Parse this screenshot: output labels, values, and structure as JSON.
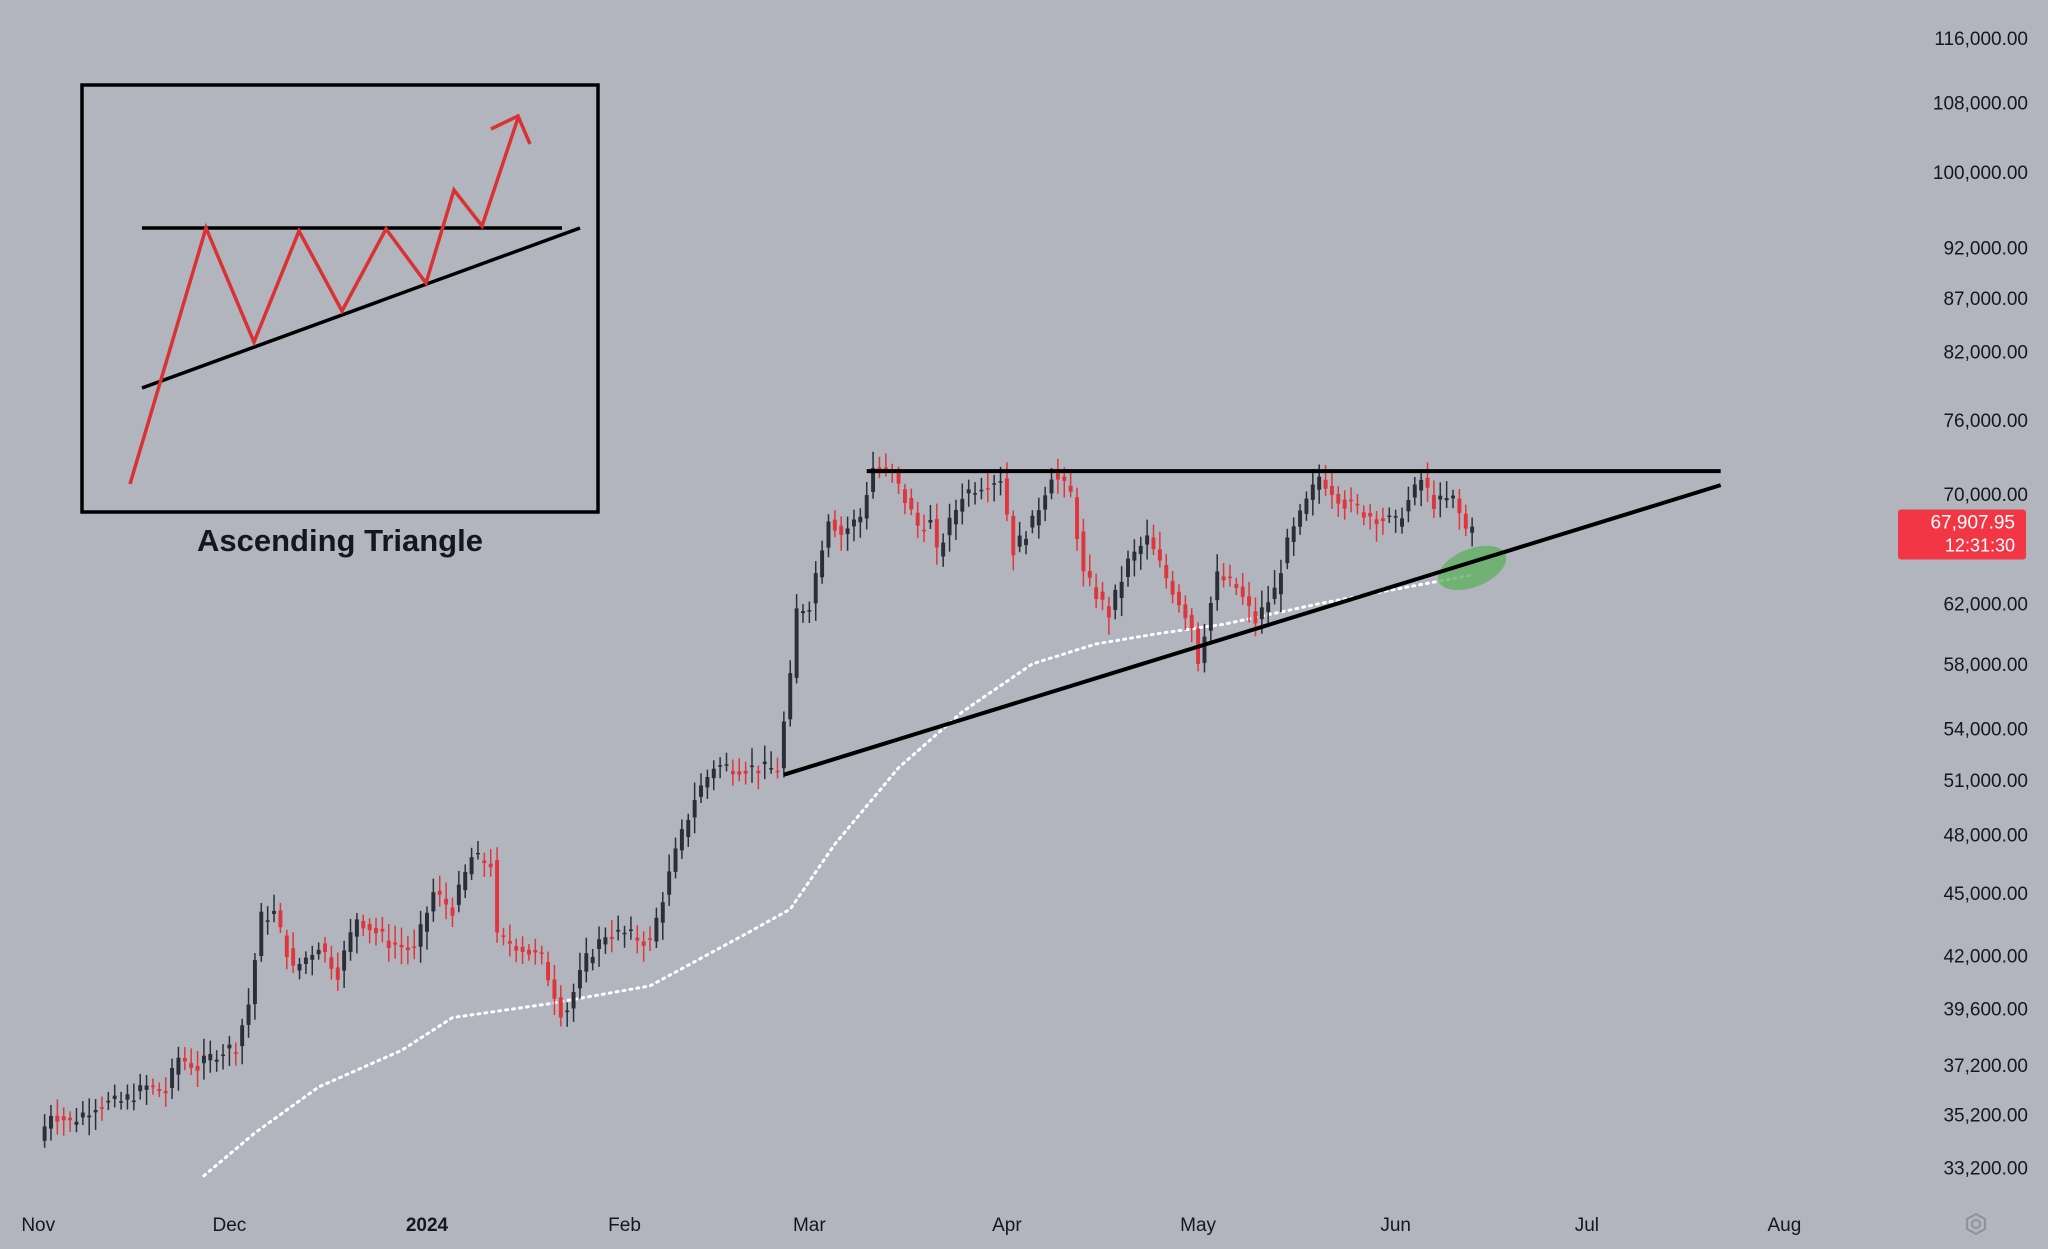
{
  "chart_data": {
    "type": "candlestick",
    "title": "",
    "xlabel": "",
    "ylabel": "",
    "y_scale": "log",
    "ylim": [
      31500,
      121000
    ],
    "xlim": [
      "2023-10-26",
      "2024-08-16"
    ],
    "x_ticks": [
      {
        "date": "2023-11-01",
        "label": "Nov",
        "bold": false
      },
      {
        "date": "2023-12-01",
        "label": "Dec",
        "bold": false
      },
      {
        "date": "2024-01-01",
        "label": "2024",
        "bold": true
      },
      {
        "date": "2024-02-01",
        "label": "Feb",
        "bold": false
      },
      {
        "date": "2024-03-01",
        "label": "Mar",
        "bold": false
      },
      {
        "date": "2024-04-01",
        "label": "Apr",
        "bold": false
      },
      {
        "date": "2024-05-01",
        "label": "May",
        "bold": false
      },
      {
        "date": "2024-06-01",
        "label": "Jun",
        "bold": false
      },
      {
        "date": "2024-07-01",
        "label": "Jul",
        "bold": false
      },
      {
        "date": "2024-08-01",
        "label": "Aug",
        "bold": false
      }
    ],
    "y_ticks": [
      {
        "value": 116000,
        "label": "116,000.00"
      },
      {
        "value": 108000,
        "label": "108,000.00"
      },
      {
        "value": 100000,
        "label": "100,000.00"
      },
      {
        "value": 92000,
        "label": "92,000.00"
      },
      {
        "value": 87000,
        "label": "87,000.00"
      },
      {
        "value": 82000,
        "label": "82,000.00"
      },
      {
        "value": 76000,
        "label": "76,000.00"
      },
      {
        "value": 70000,
        "label": "70,000.00"
      },
      {
        "value": 62000,
        "label": "62,000.00"
      },
      {
        "value": 58000,
        "label": "58,000.00"
      },
      {
        "value": 54000,
        "label": "54,000.00"
      },
      {
        "value": 51000,
        "label": "51,000.00"
      },
      {
        "value": 48000,
        "label": "48,000.00"
      },
      {
        "value": 45000,
        "label": "45,000.00"
      },
      {
        "value": 42000,
        "label": "42,000.00"
      },
      {
        "value": 39600,
        "label": "39,600.00"
      },
      {
        "value": 37200,
        "label": "37,200.00"
      },
      {
        "value": 35200,
        "label": "35,200.00"
      },
      {
        "value": 33200,
        "label": "33,200.00"
      }
    ],
    "colors": {
      "background": "#b2b5be",
      "up_candle": "#2a2e39",
      "down_candle": "#e0353b",
      "text": "#131722",
      "trendline": "#000000",
      "moving_average": "#ffffff",
      "highlight": "#5fb05f",
      "price_tag": "#f23645",
      "inset_zigzag": "#d93232"
    },
    "anchors": [
      [
        "2023-11-01",
        34200
      ],
      [
        "2023-11-03",
        35300
      ],
      [
        "2023-11-06",
        34900
      ],
      [
        "2023-11-10",
        35600
      ],
      [
        "2023-11-14",
        35700
      ],
      [
        "2023-11-18",
        36300
      ],
      [
        "2023-11-21",
        36100
      ],
      [
        "2023-11-23",
        37500
      ],
      [
        "2023-11-26",
        37100
      ],
      [
        "2023-11-29",
        37700
      ],
      [
        "2023-12-02",
        38000
      ],
      [
        "2023-12-04",
        39800
      ],
      [
        "2023-12-06",
        43800
      ],
      [
        "2023-12-08",
        44000
      ],
      [
        "2023-12-11",
        41300
      ],
      [
        "2023-12-15",
        42500
      ],
      [
        "2023-12-18",
        41200
      ],
      [
        "2023-12-21",
        43800
      ],
      [
        "2023-12-26",
        42600
      ],
      [
        "2023-12-30",
        42200
      ],
      [
        "2024-01-02",
        45000
      ],
      [
        "2024-01-05",
        44200
      ],
      [
        "2024-01-08",
        46800
      ],
      [
        "2024-01-11",
        46500
      ],
      [
        "2024-01-12",
        42800
      ],
      [
        "2024-01-15",
        42500
      ],
      [
        "2024-01-19",
        41800
      ],
      [
        "2024-01-22",
        39500
      ],
      [
        "2024-01-23",
        39600
      ],
      [
        "2024-01-26",
        41800
      ],
      [
        "2024-01-29",
        43000
      ],
      [
        "2024-02-01",
        43000
      ],
      [
        "2024-02-05",
        42600
      ],
      [
        "2024-02-09",
        47000
      ],
      [
        "2024-02-12",
        50000
      ],
      [
        "2024-02-15",
        51800
      ],
      [
        "2024-02-20",
        51700
      ],
      [
        "2024-02-25",
        51600
      ],
      [
        "2024-02-27",
        57000
      ],
      [
        "2024-02-28",
        61500
      ],
      [
        "2024-03-01",
        62000
      ],
      [
        "2024-03-04",
        68300
      ],
      [
        "2024-03-06",
        67000
      ],
      [
        "2024-03-09",
        68300
      ],
      [
        "2024-03-11",
        72100
      ],
      [
        "2024-03-14",
        71500
      ],
      [
        "2024-03-18",
        67600
      ],
      [
        "2024-03-20",
        67800
      ],
      [
        "2024-03-21",
        65500
      ],
      [
        "2024-03-25",
        70000
      ],
      [
        "2024-03-28",
        70800
      ],
      [
        "2024-03-31",
        71300
      ],
      [
        "2024-04-02",
        65800
      ],
      [
        "2024-04-05",
        67800
      ],
      [
        "2024-04-08",
        71600
      ],
      [
        "2024-04-11",
        70000
      ],
      [
        "2024-04-13",
        64000
      ],
      [
        "2024-04-17",
        61300
      ],
      [
        "2024-04-20",
        64900
      ],
      [
        "2024-04-23",
        66600
      ],
      [
        "2024-04-26",
        63800
      ],
      [
        "2024-04-30",
        60500
      ],
      [
        "2024-05-01",
        58300
      ],
      [
        "2024-05-04",
        63900
      ],
      [
        "2024-05-07",
        63100
      ],
      [
        "2024-05-10",
        60800
      ],
      [
        "2024-05-13",
        62900
      ],
      [
        "2024-05-15",
        66200
      ],
      [
        "2024-05-20",
        71400
      ],
      [
        "2024-05-24",
        69300
      ],
      [
        "2024-05-28",
        68400
      ],
      [
        "2024-06-01",
        67800
      ],
      [
        "2024-06-05",
        71100
      ],
      [
        "2024-06-07",
        69300
      ],
      [
        "2024-06-10",
        69600
      ],
      [
        "2024-06-12",
        67300
      ],
      [
        "2024-06-13",
        67907.95
      ]
    ],
    "moving_average": [
      [
        "2023-11-27",
        32900
      ],
      [
        "2023-12-05",
        34500
      ],
      [
        "2023-12-15",
        36300
      ],
      [
        "2023-12-28",
        37800
      ],
      [
        "2024-01-05",
        39200
      ],
      [
        "2024-01-20",
        39800
      ],
      [
        "2024-02-05",
        40600
      ],
      [
        "2024-02-20",
        43000
      ],
      [
        "2024-02-27",
        44200
      ],
      [
        "2024-03-05",
        47500
      ],
      [
        "2024-03-15",
        51700
      ],
      [
        "2024-03-25",
        55000
      ],
      [
        "2024-04-05",
        58000
      ],
      [
        "2024-04-15",
        59300
      ],
      [
        "2024-04-25",
        60000
      ],
      [
        "2024-05-05",
        60600
      ],
      [
        "2024-05-20",
        62000
      ],
      [
        "2024-06-01",
        63000
      ],
      [
        "2024-06-13",
        64000
      ]
    ],
    "resistance_line": {
      "from": [
        "2024-03-10",
        71800
      ],
      "to": [
        "2024-07-22",
        71800
      ]
    },
    "support_line": {
      "from": [
        "2024-02-26",
        51300
      ],
      "to": [
        "2024-07-22",
        70700
      ]
    },
    "highlight": {
      "date": "2024-06-13",
      "value": 64500
    },
    "last_price": {
      "value": 67907.95,
      "label": "67,907.95",
      "countdown": "12:31:30"
    }
  },
  "inset": {
    "title": "Ascending Triangle"
  }
}
